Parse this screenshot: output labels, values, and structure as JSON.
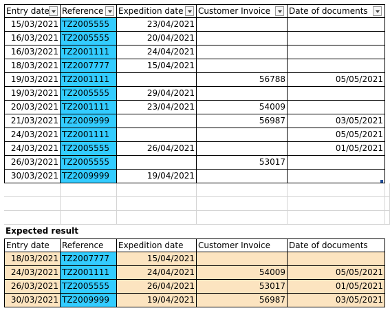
{
  "headers": [
    "Entry date",
    "Reference",
    "Expedition date",
    "Customer Invoice",
    "Date of documents"
  ],
  "source_rows": [
    [
      "15/03/2021",
      "TZ2005555",
      "23/04/2021",
      "",
      ""
    ],
    [
      "16/03/2021",
      "TZ2005555",
      "20/04/2021",
      "",
      ""
    ],
    [
      "16/03/2021",
      "TZ2001111",
      "24/04/2021",
      "",
      ""
    ],
    [
      "18/03/2021",
      "TZ2007777",
      "15/04/2021",
      "",
      ""
    ],
    [
      "19/03/2021",
      "TZ2001111",
      "",
      "56788",
      "05/05/2021"
    ],
    [
      "19/03/2021",
      "TZ2005555",
      "29/04/2021",
      "",
      ""
    ],
    [
      "20/03/2021",
      "TZ2001111",
      "23/04/2021",
      "54009",
      ""
    ],
    [
      "21/03/2021",
      "TZ2009999",
      "",
      "56987",
      "03/05/2021"
    ],
    [
      "24/03/2021",
      "TZ2001111",
      "",
      "",
      "05/05/2021"
    ],
    [
      "24/03/2021",
      "TZ2005555",
      "26/04/2021",
      "",
      "01/05/2021"
    ],
    [
      "26/03/2021",
      "TZ2005555",
      "",
      "53017",
      ""
    ],
    [
      "30/03/2021",
      "TZ2009999",
      "19/04/2021",
      "",
      ""
    ]
  ],
  "expected_title": "Expected result",
  "expected_headers": [
    "Entry date",
    "Reference",
    "Expedition date",
    "Customer Invoice",
    "Date of documents"
  ],
  "expected_rows": [
    [
      "18/03/2021",
      "TZ2007777",
      "15/04/2021",
      "",
      ""
    ],
    [
      "24/03/2021",
      "TZ2001111",
      "24/04/2021",
      "54009",
      "05/05/2021"
    ],
    [
      "26/03/2021",
      "TZ2005555",
      "26/04/2021",
      "53017",
      "01/05/2021"
    ],
    [
      "30/03/2021",
      "TZ2009999",
      "19/04/2021",
      "56987",
      "03/05/2021"
    ]
  ],
  "colors": {
    "reference_fill": "#33ccff",
    "expected_fill": "#fce4c0",
    "gridline": "#d4d4d4"
  }
}
